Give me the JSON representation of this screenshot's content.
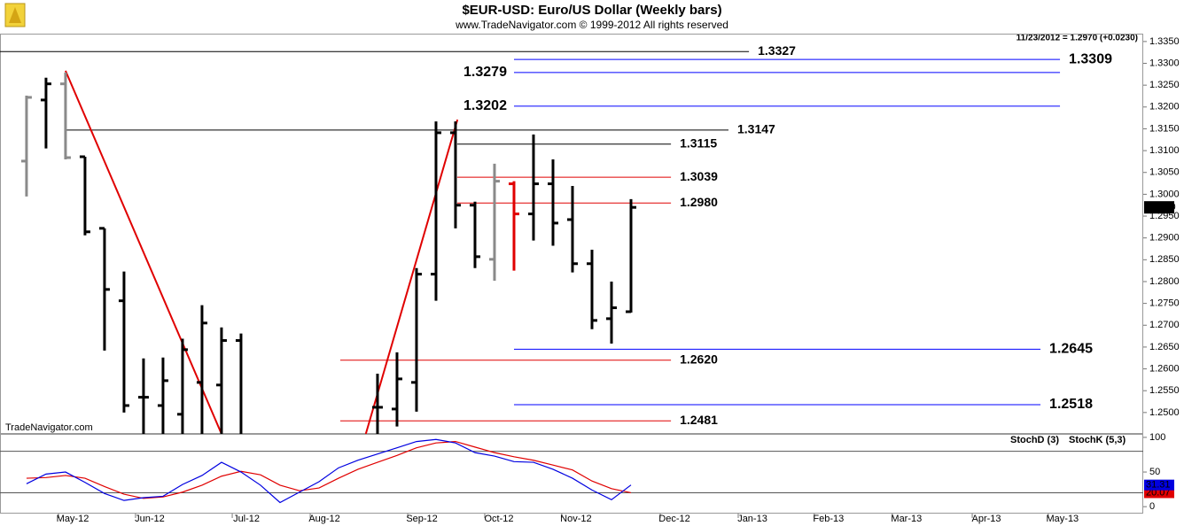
{
  "chart_data": [
    {
      "type": "ohlc",
      "title": "$EUR-USD:  Euro/US Dollar  (Weekly bars)",
      "subtitle": "www.TradeNavigator.com © 1999-2012 All rights reserved",
      "info": "11/23/2012 = 1.2970 (+0.0230)",
      "watermark": "TradeNavigator.com",
      "x": [
        0,
        1,
        2,
        3,
        4,
        5,
        6,
        7,
        8,
        9,
        10,
        11,
        18,
        19,
        20,
        21,
        22,
        23,
        24,
        25,
        26,
        27,
        28,
        29,
        30,
        31
      ],
      "open": [
        1.3076,
        1.3216,
        1.3253,
        1.3086,
        1.2922,
        1.2756,
        1.2535,
        1.2516,
        1.2496,
        1.2569,
        1.2563,
        1.2665,
        1.2512,
        1.2508,
        1.2569,
        1.2817,
        1.3141,
        1.2975,
        1.2851,
        1.3024,
        1.2955,
        1.3024,
        1.2942,
        1.2841,
        1.2715,
        1.2731
      ],
      "high": [
        1.3226,
        1.3267,
        1.3279,
        1.3086,
        1.2922,
        1.2823,
        1.2624,
        1.2626,
        1.2669,
        1.2746,
        1.2695,
        1.2681,
        1.2589,
        1.2638,
        1.2831,
        1.3167,
        1.3167,
        1.2983,
        1.307,
        1.303,
        1.3137,
        1.308,
        1.3019,
        1.2873,
        1.28,
        1.2989
      ],
      "low": [
        1.2995,
        1.3105,
        1.308,
        1.2906,
        1.2642,
        1.25,
        1.244,
        1.244,
        1.244,
        1.244,
        1.244,
        1.244,
        1.244,
        1.2468,
        1.2502,
        1.2756,
        1.2922,
        1.2831,
        1.2802,
        1.2825,
        1.2894,
        1.2882,
        1.2821,
        1.2691,
        1.2658,
        1.2729
      ],
      "close": [
        1.3222,
        1.3253,
        1.3084,
        1.2914,
        1.2782,
        1.2516,
        1.2535,
        1.2573,
        1.2644,
        1.2705,
        1.2665,
        1.2445,
        1.2512,
        1.2577,
        1.2817,
        1.3141,
        1.2975,
        1.2857,
        1.303,
        1.2955,
        1.3024,
        1.2934,
        1.2841,
        1.2711,
        1.274,
        1.297
      ],
      "colors": [
        "#8a8a8a",
        "#000000",
        "#8a8a8a",
        "#000000",
        "#000000",
        "#000000",
        "#000000",
        "#000000",
        "#000000",
        "#000000",
        "#000000",
        "#000000",
        "#000000",
        "#000000",
        "#000000",
        "#000000",
        "#000000",
        "#000000",
        "#8a8a8a",
        "#e00000",
        "#000000",
        "#000000",
        "#000000",
        "#000000",
        "#000000",
        "#000000"
      ],
      "close_label": "1.2970",
      "xlim": [
        -1.36,
        57.27
      ],
      "ylim": [
        1.2451,
        1.3368
      ],
      "yticks": [
        {
          "value": 1.25,
          "label": "1.2500"
        },
        {
          "value": 1.255,
          "label": "1.2550"
        },
        {
          "value": 1.26,
          "label": "1.2600"
        },
        {
          "value": 1.265,
          "label": "1.2650"
        },
        {
          "value": 1.27,
          "label": "1.2700"
        },
        {
          "value": 1.275,
          "label": "1.2750"
        },
        {
          "value": 1.28,
          "label": "1.2800"
        },
        {
          "value": 1.285,
          "label": "1.2850"
        },
        {
          "value": 1.29,
          "label": "1.2900"
        },
        {
          "value": 1.295,
          "label": "1.2950"
        },
        {
          "value": 1.3,
          "label": "1.3000"
        },
        {
          "value": 1.305,
          "label": "1.3050"
        },
        {
          "value": 1.31,
          "label": "1.3100"
        },
        {
          "value": 1.315,
          "label": "1.3150"
        },
        {
          "value": 1.32,
          "label": "1.3200"
        },
        {
          "value": 1.325,
          "label": "1.3250"
        },
        {
          "value": 1.33,
          "label": "1.3300"
        },
        {
          "value": 1.335,
          "label": "1.3350"
        }
      ],
      "levels": [
        {
          "value": 1.3327,
          "color": "#000000",
          "x_range": [
            -1.36,
            37.05
          ],
          "label_side": "right"
        },
        {
          "value": 1.3309,
          "color": "#0000ff",
          "x_range": [
            25,
            53
          ],
          "label_side": "right"
        },
        {
          "value": 1.3279,
          "color": "#0000ff",
          "x_range": [
            25,
            53
          ],
          "label_side": "left"
        },
        {
          "value": 1.3202,
          "color": "#0000ff",
          "x_range": [
            25,
            53
          ],
          "label_side": "left"
        },
        {
          "value": 1.3147,
          "color": "#000000",
          "x_range": [
            2,
            36
          ],
          "label_side": "right"
        },
        {
          "value": 1.3115,
          "color": "#000000",
          "x_range": [
            22.09,
            33.05
          ],
          "label_side": "right"
        },
        {
          "value": 1.3039,
          "color": "#e00000",
          "x_range": [
            22.09,
            33.05
          ],
          "label_side": "right"
        },
        {
          "value": 1.298,
          "label": "1.2980",
          "color": "#e00000",
          "x_range": [
            22.09,
            33.05
          ],
          "label_side": "right"
        },
        {
          "value": 1.2645,
          "color": "#0000ff",
          "x_range": [
            25,
            52
          ],
          "label_side": "right"
        },
        {
          "value": 1.262,
          "label": "1.2620",
          "color": "#e00000",
          "x_range": [
            16.09,
            33.05
          ],
          "label_side": "right"
        },
        {
          "value": 1.2518,
          "color": "#0000ff",
          "x_range": [
            25,
            52
          ],
          "label_side": "right"
        },
        {
          "value": 1.2481,
          "color": "#e00000",
          "x_range": [
            16.09,
            33.05
          ],
          "label_side": "right"
        }
      ],
      "trendlines": [
        {
          "color": "#e00000",
          "points": [
            [
              2,
              1.3283
            ],
            [
              10,
              1.2451
            ]
          ]
        },
        {
          "color": "#e00000",
          "points": [
            [
              17.4,
              1.2451
            ],
            [
              22.1,
              1.3171
            ]
          ]
        }
      ]
    },
    {
      "type": "line",
      "x": [
        0,
        1,
        2,
        3,
        4,
        5,
        6,
        7,
        8,
        9,
        10,
        11,
        12,
        13,
        14,
        15,
        16,
        17,
        18,
        19,
        20,
        21,
        22,
        23,
        24,
        25,
        26,
        27,
        28,
        29,
        30,
        31
      ],
      "series": [
        {
          "name": "StochD (3)",
          "color": "#e00000",
          "values": [
            41,
            42,
            45,
            41,
            29,
            18,
            12,
            14,
            21,
            31,
            44,
            51,
            46,
            31,
            23,
            27,
            41,
            54,
            64,
            74,
            85,
            92,
            94,
            86,
            78,
            72,
            67,
            60,
            53,
            37,
            26,
            20.07
          ]
        },
        {
          "name": "StochK (5,3)",
          "color": "#0000e0",
          "values": [
            33,
            47,
            50,
            35,
            19,
            9,
            13,
            15,
            32,
            45,
            64,
            50,
            31,
            6,
            21,
            36,
            56,
            67,
            76,
            85,
            94,
            97,
            92,
            78,
            73,
            65,
            64,
            54,
            41,
            24,
            10,
            31.31
          ]
        }
      ],
      "xlim": [
        -1.36,
        57.27
      ],
      "ylim": [
        -10,
        105
      ],
      "yticks": [
        0,
        50,
        100
      ],
      "guide_lines": [
        20,
        80
      ],
      "xticks": [
        {
          "value": 1.64,
          "label": "May-12"
        },
        {
          "value": 5.59,
          "label": "Jun-12"
        },
        {
          "value": 10.55,
          "label": "Jul-12"
        },
        {
          "value": 14.55,
          "label": "Aug-12"
        },
        {
          "value": 19.55,
          "label": "Sep-12"
        },
        {
          "value": 23.5,
          "label": "Oct-12"
        },
        {
          "value": 27.45,
          "label": "Nov-12"
        },
        {
          "value": 32.5,
          "label": "Dec-12"
        },
        {
          "value": 36.5,
          "label": "Jan-13"
        },
        {
          "value": 40.4,
          "label": "Feb-13"
        },
        {
          "value": 44.4,
          "label": "Mar-13"
        },
        {
          "value": 48.5,
          "label": "Apr-13"
        },
        {
          "value": 52.4,
          "label": "May-13"
        }
      ]
    }
  ]
}
